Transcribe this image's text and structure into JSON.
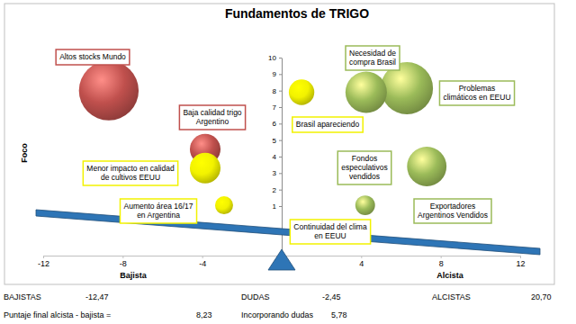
{
  "chart_data": {
    "type": "bubble",
    "title": "Fundamentos de TRIGO",
    "axis_labels": {
      "y": "Foco",
      "x_left": "Bajista",
      "x_right": "Alcista"
    },
    "xlim": [
      -12,
      12
    ],
    "xticks": [
      -12,
      -8,
      -4,
      4,
      8,
      12
    ],
    "ylim": [
      -2,
      10
    ],
    "yticks": [
      1,
      2,
      3,
      4,
      5,
      6,
      7,
      8,
      9,
      10
    ],
    "grid": false,
    "series": [
      {
        "labels": [
          "Altos stocks Mundo",
          "Baja calidad trigo\nArgentino",
          "Menor impacto en calidad\nde cultivos EEUU",
          "Aumento área 16/17\nen Argentina",
          "Brasil apareciendo",
          "Necesidad de\ncompra Brasil",
          "Problemas\nclimáticos en EEUU",
          "Fondos\nespeculativos\nvendidos",
          "Exportadores\nArgentinos Vendidos",
          "Continuidad del clima\nen EEUU"
        ],
        "x": [
          -8.7,
          -3.85,
          -3.85,
          -2.9,
          1.0,
          4.25,
          6.3,
          7.3,
          4.2,
          0
        ],
        "values": [
          8.0,
          4.45,
          3.3,
          1.05,
          7.9,
          7.9,
          8.15,
          3.4,
          1.05,
          0
        ],
        "size": [
          11,
          2.9,
          2.9,
          1.0,
          2.0,
          5.3,
          8.4,
          4.8,
          1.2,
          0
        ],
        "colors": [
          "#c0504d",
          "#c0504d",
          "#f2f200",
          "#f2f200",
          "#f2f200",
          "#9bbb59",
          "#9bbb59",
          "#9bbb59",
          "#9bbb59",
          "#f2f200"
        ]
      }
    ],
    "summary": {
      "labels": [
        "BAJISTAS",
        "DUDAS",
        "ALCISTAS",
        "Puntaje final alcista - bajista =",
        "Incorporando dudas"
      ],
      "values": [
        -12.47,
        -2.45,
        20.7,
        8.23,
        5.78
      ],
      "value_labels": [
        "-12,47",
        "-2,45",
        "20,70",
        "8,23",
        "5,78"
      ]
    }
  }
}
